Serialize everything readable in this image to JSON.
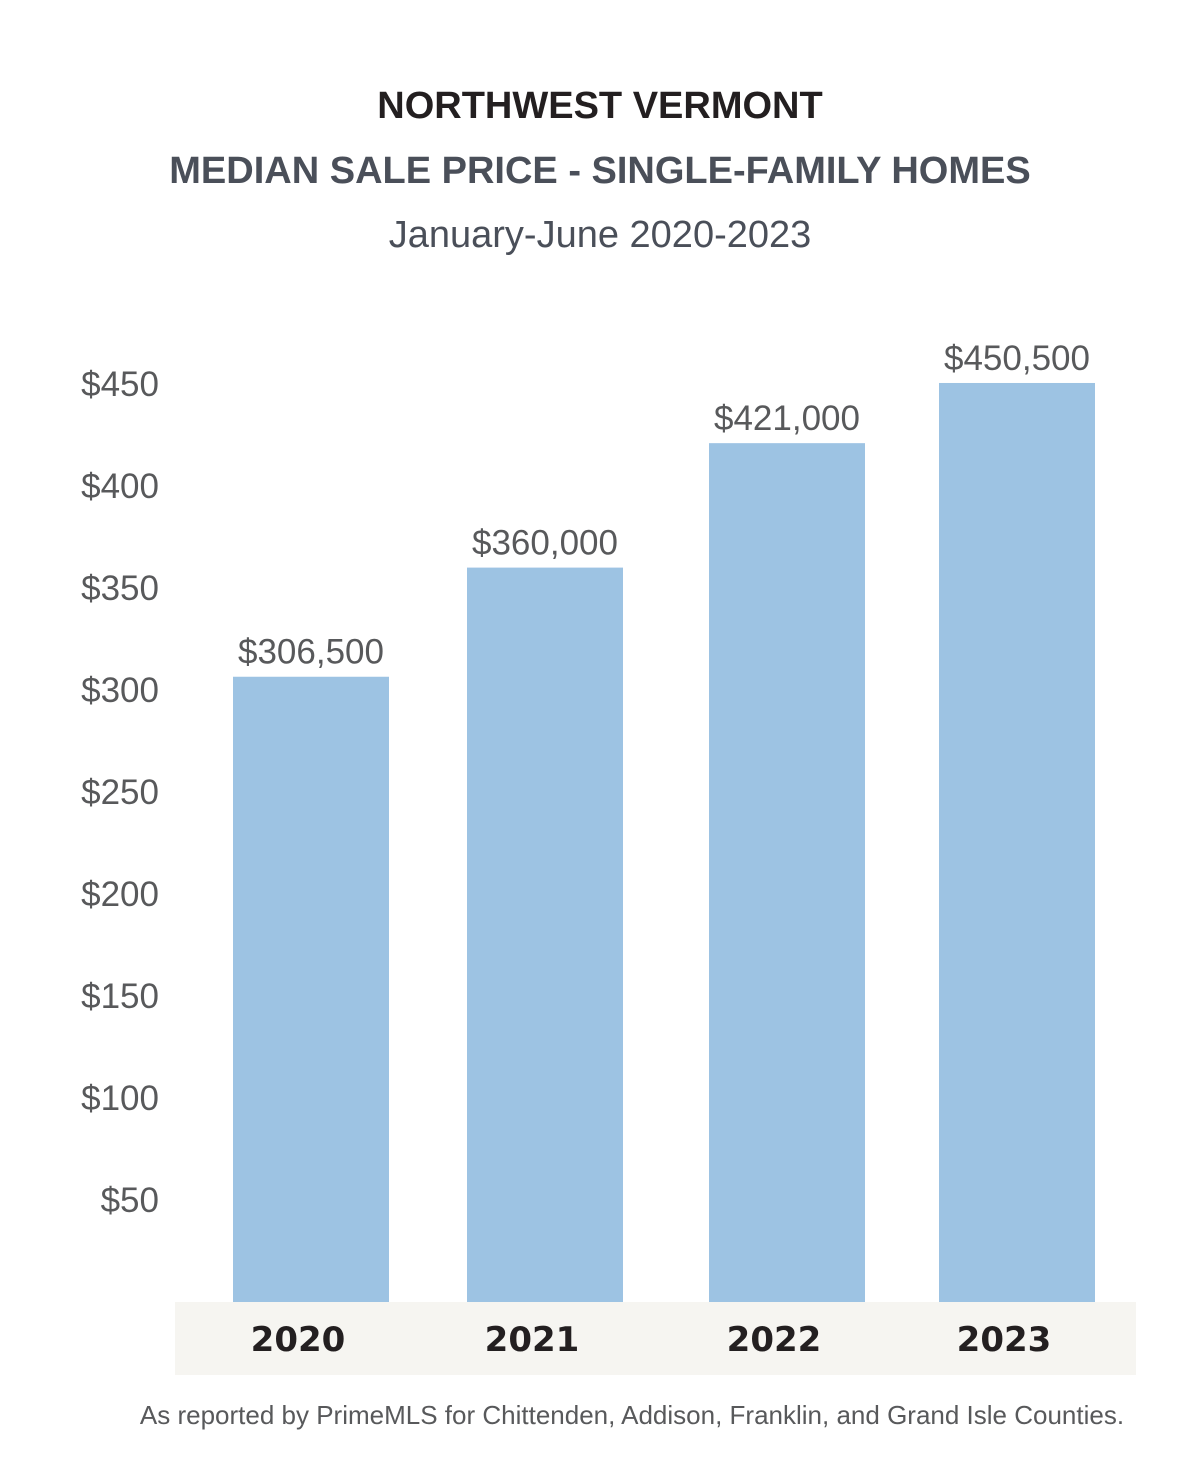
{
  "chart_data": {
    "type": "bar",
    "title": "NORTHWEST VERMONT",
    "subtitle": "MEDIAN SALE PRICE - SINGLE-FAMILY HOMES",
    "date_range": "January-June 2020-2023",
    "categories": [
      "2020",
      "2021",
      "2022",
      "2023"
    ],
    "values": [
      306.5,
      360,
      421,
      450.5
    ],
    "data_labels": [
      "$306,500",
      "$360,000",
      "$421,000",
      "$450,500"
    ],
    "y_ticks": [
      50,
      100,
      150,
      200,
      250,
      300,
      350,
      400,
      450
    ],
    "y_tick_labels": [
      "$50",
      "$100",
      "$150",
      "$200",
      "$250",
      "$300",
      "$350",
      "$400",
      "$450"
    ],
    "ylim": [
      0,
      450
    ],
    "grid": false,
    "legend": false,
    "bar_color": "#9dc3e3",
    "x_axis_band_color": "#f6f5f1",
    "source_note": "As reported by PrimeMLS for Chittenden, Addison, Franklin, and Grand Isle Counties."
  }
}
